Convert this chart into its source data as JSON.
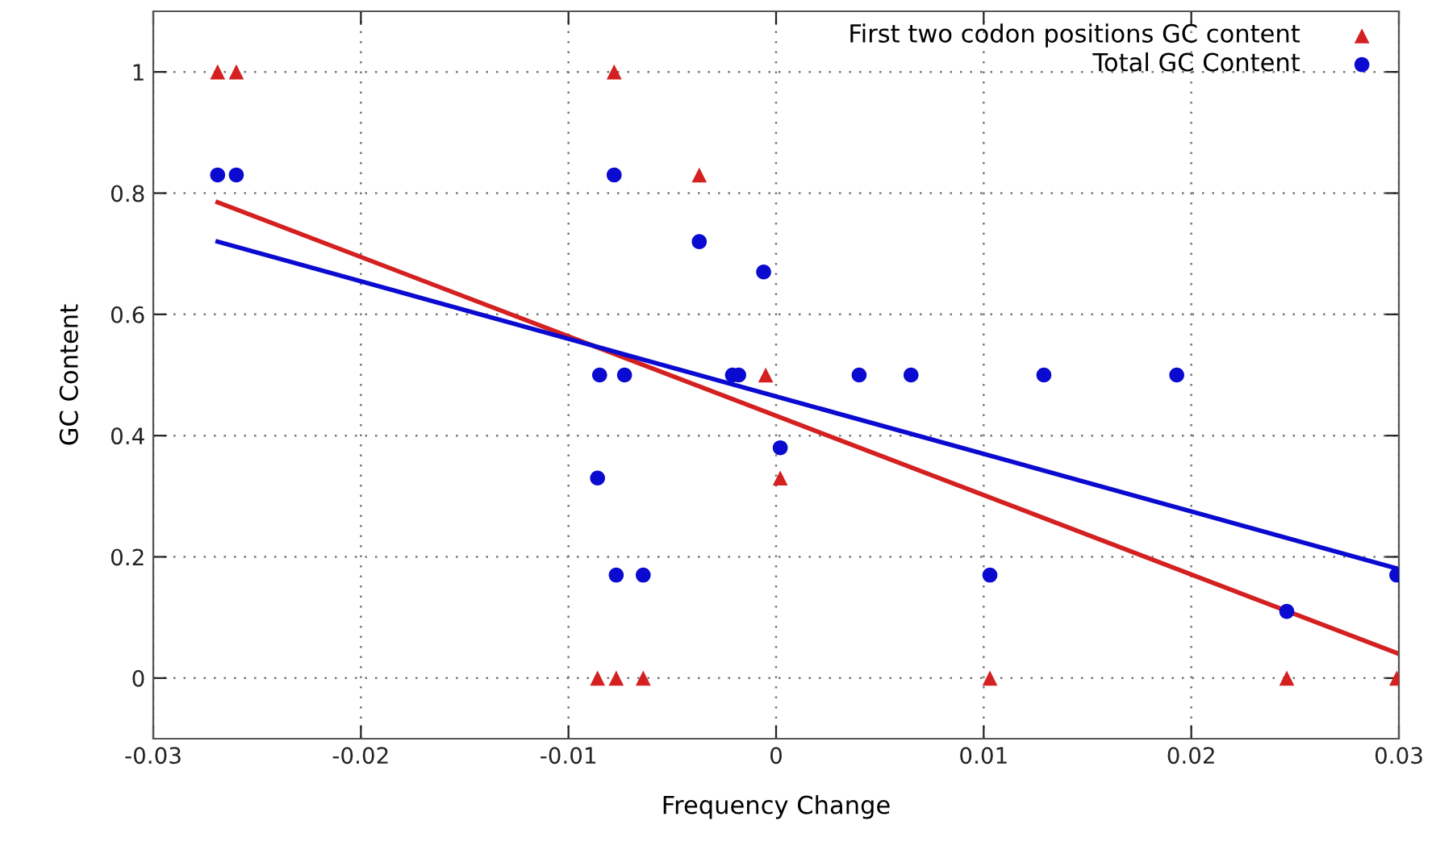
{
  "chart_data": {
    "type": "scatter",
    "xlabel": "Frequency Change",
    "ylabel": "GC Content",
    "xlim": [
      -0.03,
      0.03
    ],
    "xticks": [
      -0.03,
      -0.02,
      -0.01,
      0,
      0.01,
      0.02,
      0.03
    ],
    "ylim": [
      -0.1,
      1.1
    ],
    "yticks": [
      0,
      0.2,
      0.4,
      0.6,
      0.8,
      1
    ],
    "grid": true,
    "legend": "top right",
    "series": [
      {
        "name": "First two codon positions GC content",
        "color": "#d42020",
        "marker": "triangle",
        "x": [
          -0.0269,
          -0.026,
          -0.0078,
          -0.0037,
          -0.0005,
          0.0002,
          -0.0086,
          -0.0077,
          -0.0064,
          0.0103,
          0.0246,
          0.0299
        ],
        "values": [
          1,
          1,
          1,
          0.83,
          0.5,
          0.33,
          0,
          0,
          0,
          0,
          0,
          0
        ]
      },
      {
        "name": "Total GC Content",
        "color": "#0a0ad0",
        "marker": "circle",
        "x": [
          -0.0269,
          -0.026,
          -0.0078,
          -0.0037,
          -0.0006,
          -0.0085,
          -0.0073,
          -0.0021,
          -0.0018,
          0.004,
          0.0065,
          0.0129,
          0.0193,
          0.0002,
          -0.0086,
          -0.0077,
          -0.0064,
          0.0103,
          0.0246,
          0.0299
        ],
        "values": [
          0.83,
          0.83,
          0.83,
          0.72,
          0.67,
          0.5,
          0.5,
          0.5,
          0.5,
          0.5,
          0.5,
          0.5,
          0.5,
          0.38,
          0.33,
          0.17,
          0.17,
          0.17,
          0.11,
          0.17
        ]
      },
      {
        "type": "line",
        "color": "#d42020",
        "x": [
          -0.0269,
          0.03
        ],
        "values": [
          0.785,
          0.04
        ]
      },
      {
        "type": "line",
        "color": "#0a0ad0",
        "x": [
          -0.0269,
          0.03
        ],
        "values": [
          0.72,
          0.18
        ]
      }
    ]
  }
}
